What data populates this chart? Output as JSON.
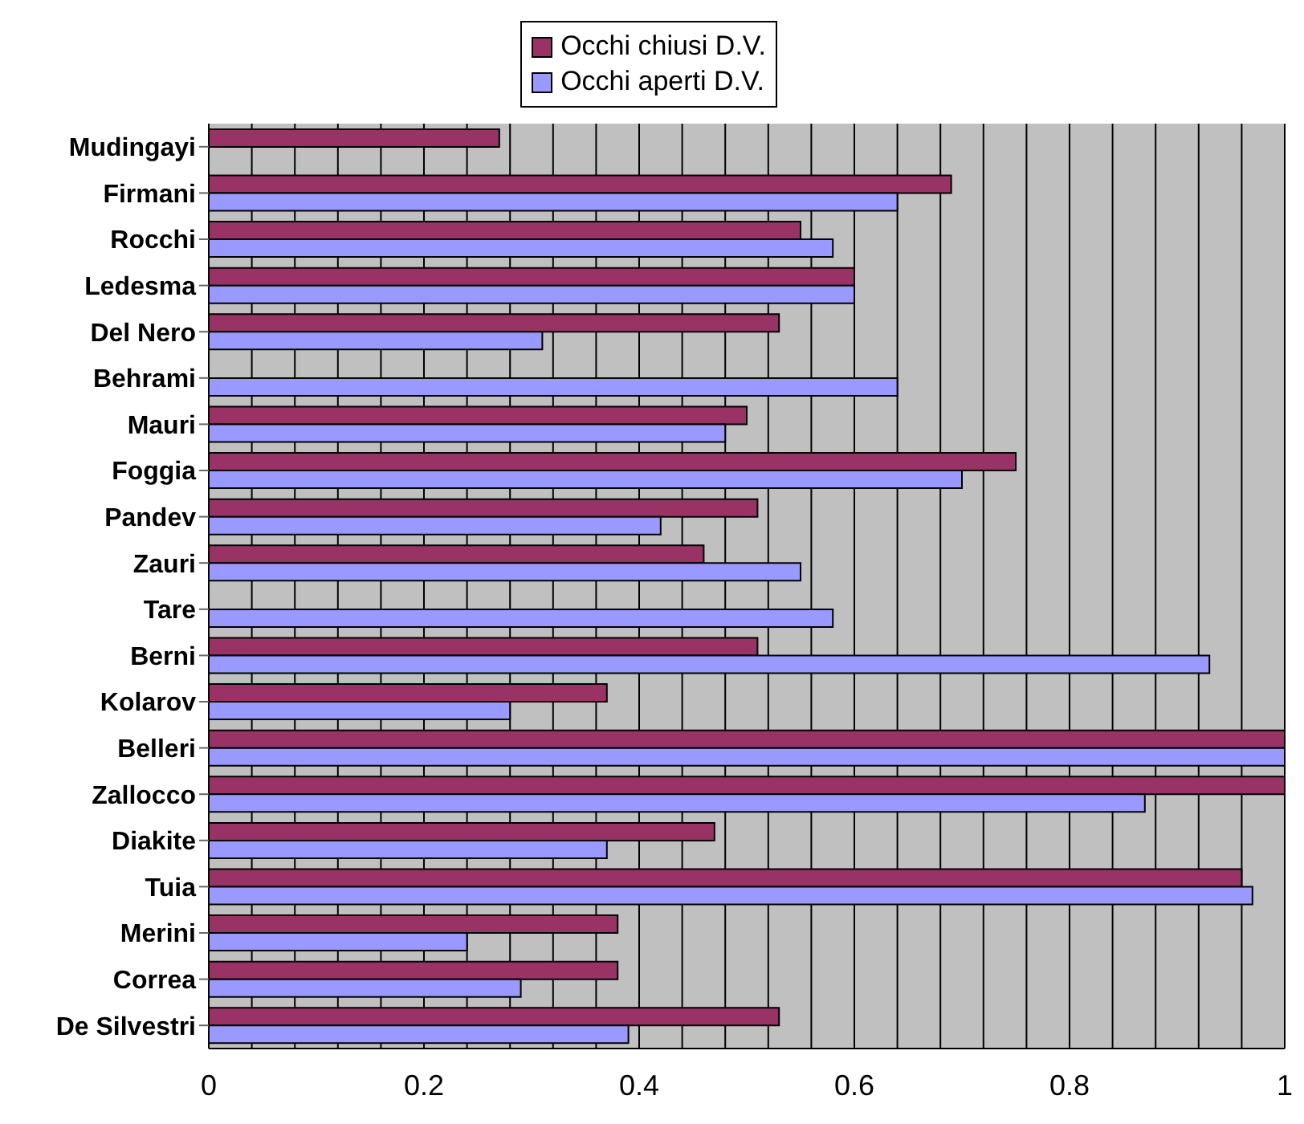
{
  "chart_data": {
    "type": "bar",
    "orientation": "horizontal",
    "categories": [
      "Mudingayi",
      "Firmani",
      "Rocchi",
      "Ledesma",
      "Del Nero",
      "Behrami",
      "Mauri",
      "Foggia",
      "Pandev",
      "Zauri",
      "Tare",
      "Berni",
      "Kolarov",
      "Belleri",
      "Zallocco",
      "Diakite",
      "Tuia",
      "Merini",
      "Correa",
      "De Silvestri"
    ],
    "series": [
      {
        "name": "Occhi chiusi D.V.",
        "color": "#993366",
        "values": [
          0.27,
          0.69,
          0.55,
          0.6,
          0.53,
          null,
          0.5,
          0.75,
          0.51,
          0.46,
          null,
          0.51,
          0.37,
          1,
          1,
          0.47,
          0.96,
          0.38,
          0.38,
          0.53
        ]
      },
      {
        "name": "Occhi aperti D.V.",
        "color": "#9999ff",
        "values": [
          null,
          0.64,
          0.58,
          0.6,
          0.31,
          0.64,
          0.48,
          0.7,
          0.42,
          0.55,
          0.58,
          0.93,
          0.28,
          1,
          0.87,
          0.37,
          0.97,
          0.24,
          0.29,
          0.39
        ]
      }
    ],
    "xlim": [
      0,
      1
    ],
    "xticks": [
      0,
      {
        "value": 0.04,
        "label": null
      },
      {
        "value": 0.08,
        "label": null
      },
      {
        "value": 0.12,
        "label": null
      },
      {
        "value": 0.16,
        "label": null
      },
      0.2,
      {
        "value": 0.24,
        "label": null
      },
      {
        "value": 0.28,
        "label": null
      },
      {
        "value": 0.32,
        "label": null
      },
      {
        "value": 0.36,
        "label": null
      },
      0.4,
      {
        "value": 0.44,
        "label": null
      },
      {
        "value": 0.48,
        "label": null
      },
      {
        "value": 0.52,
        "label": null
      },
      {
        "value": 0.56,
        "label": null
      },
      0.6,
      {
        "value": 0.64,
        "label": null
      },
      {
        "value": 0.68,
        "label": null
      },
      {
        "value": 0.72,
        "label": null
      },
      {
        "value": 0.76,
        "label": null
      },
      0.8,
      {
        "value": 0.84,
        "label": null
      },
      {
        "value": 0.88,
        "label": null
      },
      {
        "value": 0.92,
        "label": null
      },
      {
        "value": 0.96,
        "label": null
      },
      1
    ],
    "grid": "x",
    "legend": "top"
  }
}
